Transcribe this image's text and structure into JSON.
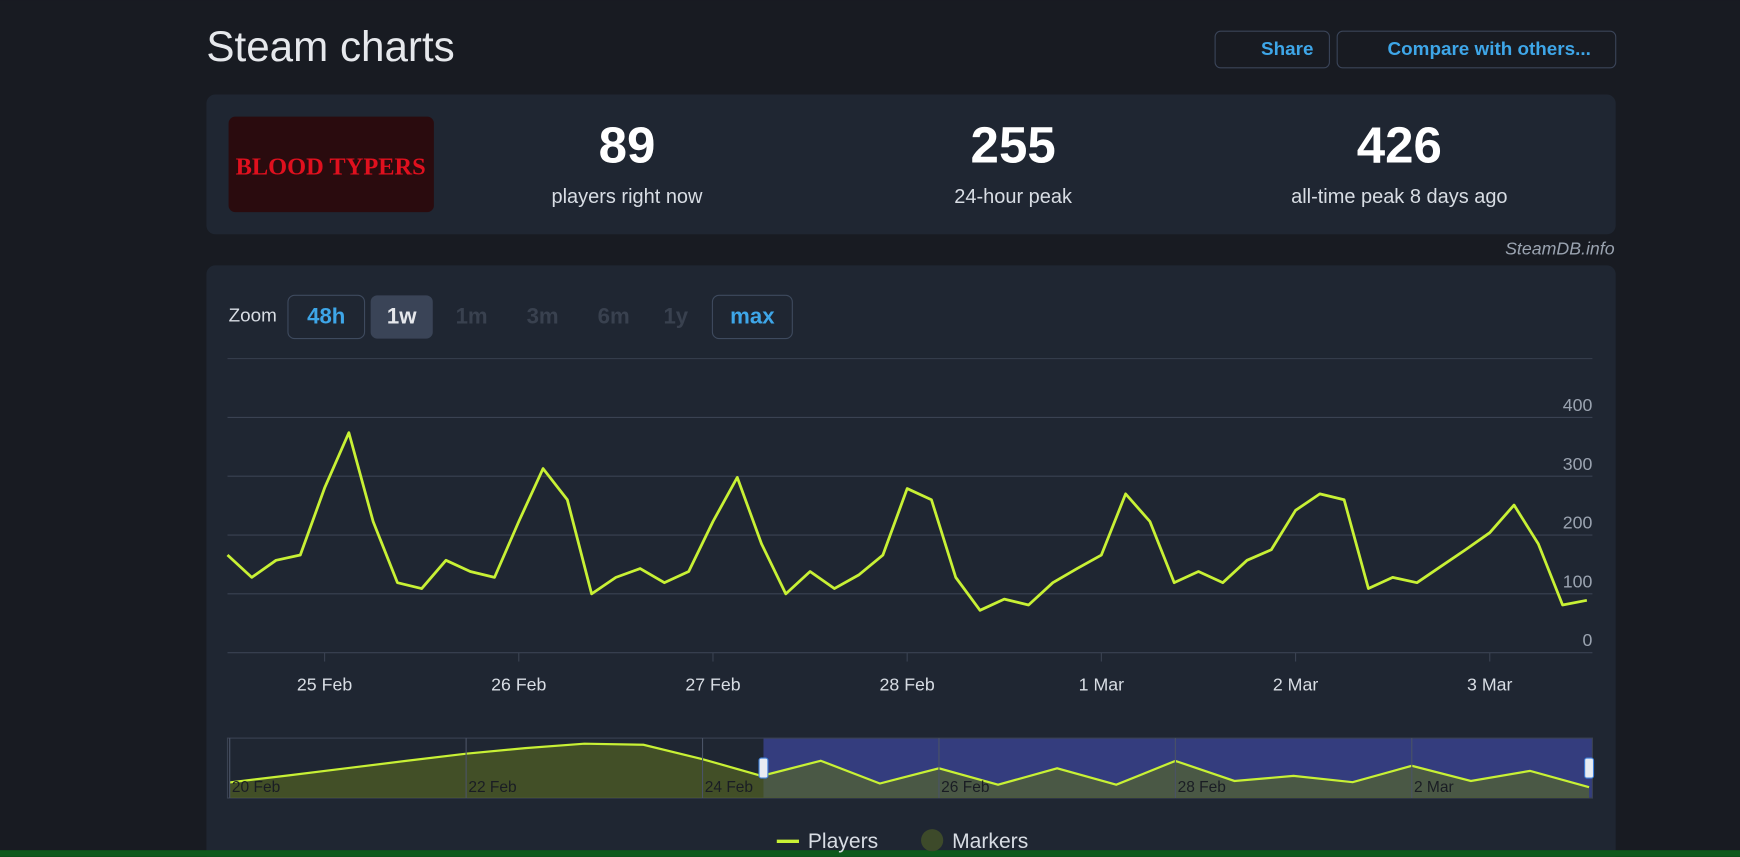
{
  "header": {
    "title": "Steam charts",
    "buttons": [
      "Share",
      "Compare with others..."
    ]
  },
  "game": {
    "logo_text": "BLOOD TYPERS"
  },
  "stats": [
    {
      "value": 89,
      "label": "players right now"
    },
    {
      "value": 255,
      "label": "24-hour peak"
    },
    {
      "value": 426,
      "label": "all-time peak 8 days ago"
    }
  ],
  "source": "SteamDB.info",
  "zoom": {
    "label": "Zoom",
    "options": [
      "48h",
      "1w",
      "1m",
      "3m",
      "6m",
      "1y",
      "max"
    ],
    "active": 1,
    "disabled": [
      2,
      3,
      4,
      5
    ]
  },
  "chart_data": [
    {
      "type": "line",
      "categories": [
        null,
        null,
        null,
        null,
        "25 Feb",
        null,
        null,
        null,
        null,
        null,
        null,
        null,
        "26 Feb",
        null,
        null,
        null,
        null,
        null,
        null,
        null,
        "27 Feb",
        null,
        null,
        null,
        null,
        null,
        null,
        null,
        "28 Feb",
        null,
        null,
        null,
        null,
        null,
        null,
        null,
        "1 Mar",
        null,
        null,
        null,
        null,
        null,
        null,
        null,
        "2 Mar",
        null,
        null,
        null,
        null,
        null,
        null,
        null,
        "3 Mar",
        null,
        null,
        null,
        null
      ],
      "series": [
        {
          "name": "Players",
          "color": "#c8f135",
          "values": [
            166,
            128,
            157,
            166,
            280,
            374,
            223,
            119,
            109,
            157,
            138,
            128,
            223,
            313,
            260,
            100,
            128,
            143,
            119,
            138,
            223,
            298,
            185,
            100,
            138,
            109,
            132,
            166,
            279,
            260,
            128,
            72,
            91,
            81,
            119,
            143,
            166,
            270,
            223,
            119,
            138,
            119,
            157,
            175,
            242,
            270,
            260,
            109,
            128,
            119,
            147,
            175,
            204,
            251,
            185,
            81,
            89
          ]
        }
      ],
      "markers": {
        "name": "Markers",
        "color": "#3d4a2a"
      },
      "ylim": [
        0,
        500
      ],
      "yticks": [
        0,
        100,
        200,
        300,
        400
      ],
      "grid": true
    },
    {
      "type": "area",
      "categories": [
        "20 Feb",
        null,
        null,
        null,
        "22 Feb",
        null,
        null,
        null,
        "24 Feb",
        null,
        null,
        null,
        "26 Feb",
        null,
        null,
        null,
        "28 Feb",
        null,
        null,
        null,
        "2 Mar",
        null,
        null,
        null
      ],
      "values": [
        117,
        170,
        225,
        280,
        333,
        375,
        408,
        400,
        292,
        166,
        280,
        109,
        223,
        100,
        223,
        100,
        279,
        128,
        166,
        119,
        242,
        128,
        204,
        81
      ],
      "color": "#c8f135",
      "ylim": [
        0,
        450
      ]
    }
  ]
}
